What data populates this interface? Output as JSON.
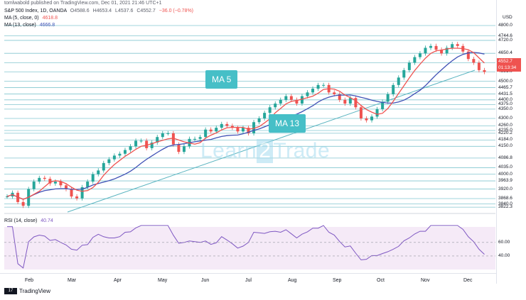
{
  "header": {
    "published": "tomlwabold published on TradingView.com, Dec 01, 2021 21:46 UTC+1",
    "symbol": "S&P 500 Index, 1D, OANDA",
    "ohlc": {
      "O": "4588.6",
      "H": "4653.4",
      "L": "4537.6",
      "C": "4552.7",
      "change": "−36.0 (−0.78%)"
    },
    "ma5_label": "MA (5, close, 0)",
    "ma5_value": "4618.8",
    "ma13_label": "MA (13, close)",
    "ma13_value": "4666.8"
  },
  "rsi_legend": {
    "label": "RSI (14, close)",
    "value": "40.74"
  },
  "axis": {
    "currency": "USD",
    "price_badge": "4552.7",
    "time_badge": "01:13:34",
    "x_labels": [
      "Feb",
      "Mar",
      "Apr",
      "May",
      "Jun",
      "Jul",
      "Aug",
      "Sep",
      "Oct",
      "Nov",
      "Dec"
    ],
    "rsi_ticks": [
      "60.00",
      "40.00"
    ]
  },
  "callouts": {
    "ma5": "MA 5",
    "ma13": "MA 13"
  },
  "watermark": {
    "left": "Learn",
    "mid": "2",
    "right": "Trade"
  },
  "footer": {
    "brand": "TradingView",
    "logo": "17"
  },
  "colors": {
    "up": "#26a69a",
    "down": "#ef5350",
    "ma5": "#ef5350",
    "ma13": "#3f51b5",
    "levels": "#5ab4c0",
    "rsi": "#7e57c2"
  },
  "chart_data": {
    "type": "candlestick",
    "ylim": [
      3800,
      4800
    ],
    "rsi_ylim": [
      20,
      85
    ],
    "levels": [
      4800.0,
      4744.6,
      4720.0,
      4650.4,
      4600.0,
      4551.0,
      4500.0,
      4465.7,
      4431.5,
      4400.0,
      4375.0,
      4350.0,
      4300.0,
      4260.0,
      4235.0,
      4220.2,
      4184.0,
      4150.0,
      4086.8,
      4035.0,
      4000.0,
      3963.9,
      3920.0,
      3868.6,
      3840.0,
      3822.3
    ],
    "prices": [
      3880,
      3900,
      3850,
      3830,
      3920,
      3960,
      3980,
      3975,
      3950,
      3960,
      3940,
      3920,
      3880,
      3870,
      3930,
      3960,
      4000,
      4020,
      4060,
      4080,
      4100,
      4110,
      4130,
      4150,
      4180,
      4180,
      4140,
      4170,
      4200,
      4220,
      4220,
      4160,
      4120,
      4150,
      4190,
      4190,
      4200,
      4240,
      4230,
      4250,
      4270,
      4260,
      4250,
      4230,
      4250,
      4220,
      4280,
      4300,
      4330,
      4360,
      4380,
      4400,
      4420,
      4400,
      4380,
      4420,
      4440,
      4460,
      4480,
      4480,
      4440,
      4430,
      4400,
      4380,
      4410,
      4360,
      4300,
      4290,
      4310,
      4350,
      4390,
      4430,
      4480,
      4520,
      4560,
      4600,
      4630,
      4650,
      4680,
      4690,
      4670,
      4650,
      4680,
      4700,
      4690,
      4660,
      4620,
      4600,
      4560,
      4550
    ]
  }
}
